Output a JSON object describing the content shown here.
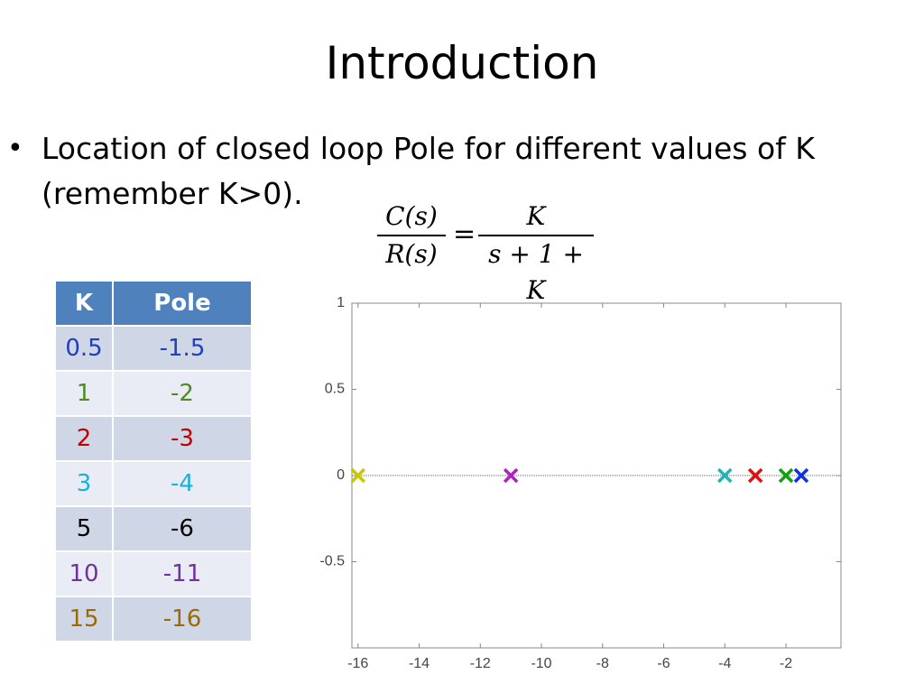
{
  "slide": {
    "title": "Introduction",
    "bullet": "Location of closed loop Pole for different values of K (remember K>0)."
  },
  "formula": {
    "lhs_num": "C(s)",
    "lhs_den": "R(s)",
    "equals": "=",
    "rhs_num": "K",
    "rhs_den": "s + 1 + K"
  },
  "table": {
    "headers": [
      "K",
      "Pole"
    ],
    "rows": [
      {
        "k": "0.5",
        "pole": "-1.5",
        "color": "#1f3fbf"
      },
      {
        "k": "1",
        "pole": "-2",
        "color": "#4e8a2a"
      },
      {
        "k": "2",
        "pole": "-3",
        "color": "#c00000"
      },
      {
        "k": "3",
        "pole": "-4",
        "color": "#1ab0e0"
      },
      {
        "k": "5",
        "pole": "-6",
        "color": "#000000"
      },
      {
        "k": "10",
        "pole": "-11",
        "color": "#7030a0"
      },
      {
        "k": "15",
        "pole": "-16",
        "color": "#9c6a00"
      }
    ]
  },
  "chart_data": {
    "type": "scatter",
    "xlim": [
      -16.2,
      -0.2
    ],
    "ylim": [
      -1,
      1
    ],
    "x_ticks": [
      -16,
      -14,
      -12,
      -10,
      -8,
      -6,
      -4,
      -2
    ],
    "y_ticks": [
      1,
      0.5,
      0,
      -0.5
    ],
    "marker": "x",
    "zero_line": true,
    "grid": false,
    "points": [
      {
        "x": -16,
        "y": 0,
        "color": "#c8c800"
      },
      {
        "x": -11,
        "y": 0,
        "color": "#b020c0"
      },
      {
        "x": -4,
        "y": 0,
        "color": "#20b4b4"
      },
      {
        "x": -3,
        "y": 0,
        "color": "#e01010"
      },
      {
        "x": -2,
        "y": 0,
        "color": "#10a010"
      },
      {
        "x": -1.5,
        "y": 0,
        "color": "#1030e0"
      }
    ]
  }
}
